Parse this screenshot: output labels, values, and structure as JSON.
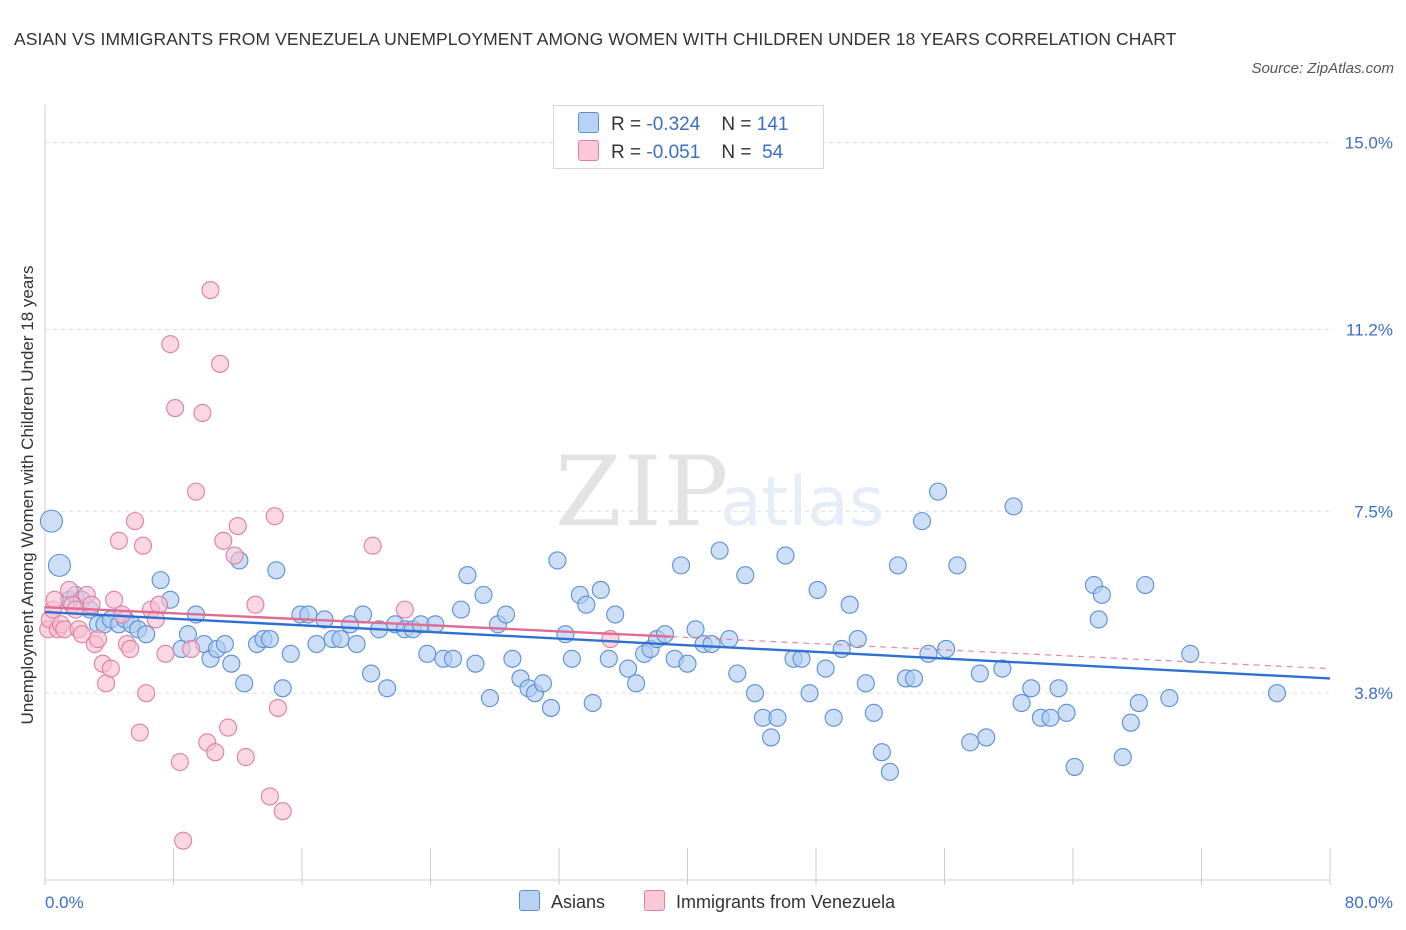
{
  "title": "ASIAN VS IMMIGRANTS FROM VENEZUELA UNEMPLOYMENT AMONG WOMEN WITH CHILDREN UNDER 18 YEARS CORRELATION CHART",
  "source": "Source: ZipAtlas.com",
  "watermark": {
    "zip": "ZIP",
    "atlas": "atlas"
  },
  "legend_top": [
    {
      "r_label": "R =",
      "r_value": "-0.324",
      "n_label": "N =",
      "n_value": "141"
    },
    {
      "r_label": "R =",
      "r_value": "-0.051",
      "n_label": "N =",
      "n_value": "54"
    }
  ],
  "legend_bottom": [
    "Asians",
    "Immigrants from Venezuela"
  ],
  "colors": {
    "asians_fill": "#aecbf0",
    "asians_stroke": "#5b8fd4",
    "asians_line": "#2f6fcf",
    "venezuela_fill": "#f7bfd0",
    "venezuela_stroke": "#e07f9f",
    "venezuela_line": "#e06b93",
    "axis_label": "#3a6fc4",
    "grid": "#dddddd"
  },
  "chart_data": {
    "type": "scatter",
    "title": "ASIAN VS IMMIGRANTS FROM VENEZUELA UNEMPLOYMENT AMONG WOMEN WITH CHILDREN UNDER 18 YEARS CORRELATION CHART",
    "xlabel": "",
    "ylabel": "Unemployment Among Women with Children Under 18 years",
    "xlim": [
      0,
      80
    ],
    "ylim": [
      0,
      15.5
    ],
    "x_tick_labels": [
      "0.0%",
      "80.0%"
    ],
    "y_ticks": [
      {
        "value": 3.8,
        "label": "3.8%"
      },
      {
        "value": 7.5,
        "label": "7.5%"
      },
      {
        "value": 11.2,
        "label": "11.2%"
      },
      {
        "value": 15.0,
        "label": "15.0%"
      }
    ],
    "grid": true,
    "series": [
      {
        "name": "Asians",
        "trend": {
          "x": [
            0,
            80
          ],
          "y": [
            5.45,
            4.1
          ]
        },
        "points": [
          [
            0.4,
            7.3
          ],
          [
            0.9,
            6.4
          ],
          [
            1.5,
            5.7
          ],
          [
            1.9,
            5.8
          ],
          [
            2.3,
            5.7
          ],
          [
            2.8,
            5.5
          ],
          [
            3.3,
            5.2
          ],
          [
            3.7,
            5.2
          ],
          [
            4.1,
            5.3
          ],
          [
            4.6,
            5.2
          ],
          [
            5.0,
            5.3
          ],
          [
            5.4,
            5.2
          ],
          [
            5.8,
            5.1
          ],
          [
            6.3,
            5.0
          ],
          [
            7.2,
            6.1
          ],
          [
            7.8,
            5.7
          ],
          [
            8.5,
            4.7
          ],
          [
            8.9,
            5.0
          ],
          [
            9.4,
            5.4
          ],
          [
            9.9,
            4.8
          ],
          [
            10.3,
            4.5
          ],
          [
            10.7,
            4.7
          ],
          [
            11.2,
            4.8
          ],
          [
            11.6,
            4.4
          ],
          [
            12.1,
            6.5
          ],
          [
            12.4,
            4.0
          ],
          [
            13.2,
            4.8
          ],
          [
            13.6,
            4.9
          ],
          [
            14.0,
            4.9
          ],
          [
            14.4,
            6.3
          ],
          [
            14.8,
            3.9
          ],
          [
            15.3,
            4.6
          ],
          [
            15.9,
            5.4
          ],
          [
            16.4,
            5.4
          ],
          [
            16.9,
            4.8
          ],
          [
            17.4,
            5.3
          ],
          [
            17.9,
            4.9
          ],
          [
            18.4,
            4.9
          ],
          [
            19.0,
            5.2
          ],
          [
            19.4,
            4.8
          ],
          [
            19.8,
            5.4
          ],
          [
            20.3,
            4.2
          ],
          [
            20.8,
            5.1
          ],
          [
            21.3,
            3.9
          ],
          [
            21.8,
            5.2
          ],
          [
            22.4,
            5.1
          ],
          [
            22.9,
            5.1
          ],
          [
            23.4,
            5.2
          ],
          [
            23.8,
            4.6
          ],
          [
            24.3,
            5.2
          ],
          [
            24.8,
            4.5
          ],
          [
            25.4,
            4.5
          ],
          [
            25.9,
            5.5
          ],
          [
            26.3,
            6.2
          ],
          [
            26.8,
            4.4
          ],
          [
            27.3,
            5.8
          ],
          [
            27.7,
            3.7
          ],
          [
            28.2,
            5.2
          ],
          [
            28.7,
            5.4
          ],
          [
            29.1,
            4.5
          ],
          [
            29.6,
            4.1
          ],
          [
            30.1,
            3.9
          ],
          [
            30.5,
            3.8
          ],
          [
            31.0,
            4.0
          ],
          [
            31.5,
            3.5
          ],
          [
            31.9,
            6.5
          ],
          [
            32.4,
            5.0
          ],
          [
            32.8,
            4.5
          ],
          [
            33.3,
            5.8
          ],
          [
            33.7,
            5.6
          ],
          [
            34.1,
            3.6
          ],
          [
            34.6,
            5.9
          ],
          [
            35.1,
            4.5
          ],
          [
            35.5,
            5.4
          ],
          [
            36.3,
            4.3
          ],
          [
            36.8,
            4.0
          ],
          [
            37.3,
            4.6
          ],
          [
            37.7,
            4.7
          ],
          [
            38.1,
            4.9
          ],
          [
            38.6,
            5.0
          ],
          [
            39.2,
            4.5
          ],
          [
            39.6,
            6.4
          ],
          [
            40.0,
            4.4
          ],
          [
            40.5,
            5.1
          ],
          [
            41.0,
            4.8
          ],
          [
            41.5,
            4.8
          ],
          [
            42.0,
            6.7
          ],
          [
            42.6,
            4.9
          ],
          [
            43.1,
            4.2
          ],
          [
            43.6,
            6.2
          ],
          [
            44.2,
            3.8
          ],
          [
            44.7,
            3.3
          ],
          [
            45.2,
            2.9
          ],
          [
            45.6,
            3.3
          ],
          [
            46.1,
            6.6
          ],
          [
            46.6,
            4.5
          ],
          [
            47.1,
            4.5
          ],
          [
            47.6,
            3.8
          ],
          [
            48.1,
            5.9
          ],
          [
            48.6,
            4.3
          ],
          [
            49.1,
            3.3
          ],
          [
            49.6,
            4.7
          ],
          [
            50.1,
            5.6
          ],
          [
            50.6,
            4.9
          ],
          [
            51.1,
            4.0
          ],
          [
            51.6,
            3.4
          ],
          [
            52.1,
            2.6
          ],
          [
            52.6,
            2.2
          ],
          [
            53.1,
            6.4
          ],
          [
            53.6,
            4.1
          ],
          [
            54.1,
            4.1
          ],
          [
            54.6,
            7.3
          ],
          [
            55.0,
            4.6
          ],
          [
            55.6,
            7.9
          ],
          [
            56.1,
            4.7
          ],
          [
            56.8,
            6.4
          ],
          [
            57.6,
            2.8
          ],
          [
            58.2,
            4.2
          ],
          [
            58.6,
            2.9
          ],
          [
            59.6,
            4.3
          ],
          [
            60.3,
            7.6
          ],
          [
            60.8,
            3.6
          ],
          [
            61.4,
            3.9
          ],
          [
            62.0,
            3.3
          ],
          [
            62.6,
            3.3
          ],
          [
            63.1,
            3.9
          ],
          [
            63.6,
            3.4
          ],
          [
            64.1,
            2.3
          ],
          [
            65.3,
            6.0
          ],
          [
            65.6,
            5.3
          ],
          [
            65.8,
            5.8
          ],
          [
            67.1,
            2.5
          ],
          [
            67.6,
            3.2
          ],
          [
            68.1,
            3.6
          ],
          [
            68.5,
            6.0
          ],
          [
            70.0,
            3.7
          ],
          [
            71.3,
            4.6
          ],
          [
            76.7,
            3.8
          ]
        ]
      },
      {
        "name": "Immigrants from Venezuela",
        "trend": {
          "x": [
            0,
            39
          ],
          "y": [
            5.55,
            4.95
          ]
        },
        "trend_extension": {
          "x": [
            39,
            80
          ],
          "y": [
            4.95,
            4.3
          ]
        },
        "points": [
          [
            0.2,
            5.1
          ],
          [
            0.3,
            5.3
          ],
          [
            0.5,
            5.5
          ],
          [
            0.6,
            5.7
          ],
          [
            0.8,
            5.1
          ],
          [
            1.0,
            5.2
          ],
          [
            1.2,
            5.1
          ],
          [
            1.5,
            5.9
          ],
          [
            1.7,
            5.6
          ],
          [
            1.9,
            5.5
          ],
          [
            2.1,
            5.1
          ],
          [
            2.3,
            5.0
          ],
          [
            2.6,
            5.8
          ],
          [
            2.9,
            5.6
          ],
          [
            3.1,
            4.8
          ],
          [
            3.3,
            4.9
          ],
          [
            3.6,
            4.4
          ],
          [
            3.8,
            4.0
          ],
          [
            4.1,
            4.3
          ],
          [
            4.3,
            5.7
          ],
          [
            4.6,
            6.9
          ],
          [
            4.8,
            5.4
          ],
          [
            5.1,
            4.8
          ],
          [
            5.3,
            4.7
          ],
          [
            5.6,
            7.3
          ],
          [
            5.9,
            3.0
          ],
          [
            6.1,
            6.8
          ],
          [
            6.3,
            3.8
          ],
          [
            6.6,
            5.5
          ],
          [
            6.9,
            5.3
          ],
          [
            7.1,
            5.6
          ],
          [
            7.5,
            4.6
          ],
          [
            7.8,
            10.9
          ],
          [
            8.1,
            9.6
          ],
          [
            8.4,
            2.4
          ],
          [
            8.6,
            0.8
          ],
          [
            9.1,
            4.7
          ],
          [
            9.4,
            7.9
          ],
          [
            9.8,
            9.5
          ],
          [
            10.1,
            2.8
          ],
          [
            10.3,
            12.0
          ],
          [
            10.6,
            2.6
          ],
          [
            10.9,
            10.5
          ],
          [
            11.1,
            6.9
          ],
          [
            11.4,
            3.1
          ],
          [
            11.8,
            6.6
          ],
          [
            12.0,
            7.2
          ],
          [
            12.5,
            2.5
          ],
          [
            13.1,
            5.6
          ],
          [
            14.0,
            1.7
          ],
          [
            14.3,
            7.4
          ],
          [
            14.5,
            3.5
          ],
          [
            14.8,
            1.4
          ],
          [
            20.4,
            6.8
          ],
          [
            22.4,
            5.5
          ],
          [
            35.2,
            4.9
          ]
        ]
      }
    ]
  }
}
